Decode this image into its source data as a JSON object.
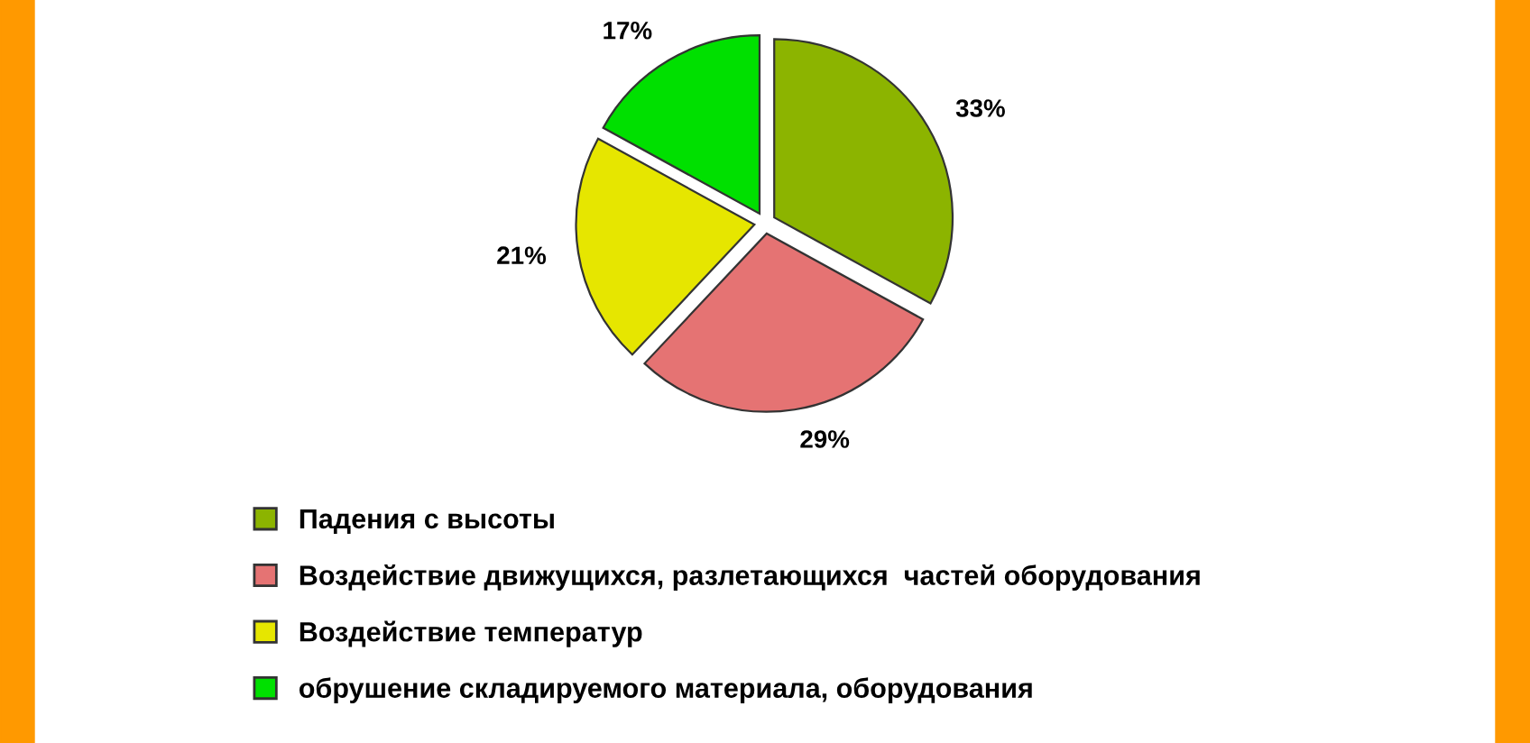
{
  "chart_data": {
    "type": "pie",
    "categories": [
      "Падения с высоты",
      "Воздействие движущихся, разлетающихся  частей оборудования",
      "Воздействие температур",
      "обрушение складируемого материала, оборудования"
    ],
    "values": [
      33,
      29,
      21,
      17
    ],
    "value_labels": [
      "33%",
      "29%",
      "21%",
      "17%"
    ],
    "colors": [
      "#8cb400",
      "#e57373",
      "#e6e600",
      "#00e000"
    ],
    "legend": "bottom left"
  }
}
